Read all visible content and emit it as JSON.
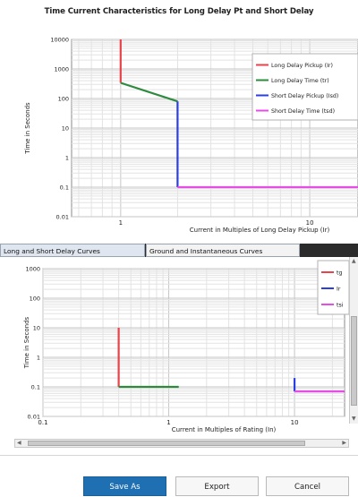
{
  "window": {
    "title": "Time Current Characteristics for Long Delay Pt and Short Delay"
  },
  "tabs": [
    {
      "label": "Long and Short Delay Curves",
      "selected": true
    },
    {
      "label": "Ground and Instantaneous Curves",
      "selected": false
    }
  ],
  "buttons": {
    "save_as": "Save As",
    "export": "Export",
    "cancel": "Cancel"
  },
  "colors": {
    "red": "#e8434a",
    "green": "#2e8b3e",
    "blue": "#2a3fe0",
    "magenta": "#e64ce6",
    "accent": "#1f6fb3"
  },
  "chart_data": [
    {
      "type": "line",
      "scale": {
        "x": "log",
        "y": "log"
      },
      "xlabel": "Current in Multiples of Long Delay Pickup (Ir)",
      "ylabel": "Time in Seconds",
      "xlim": [
        0.55,
        18
      ],
      "ylim": [
        0.01,
        10000
      ],
      "x_ticks": [
        "1",
        "10"
      ],
      "y_ticks": [
        "10000",
        "1000",
        "100",
        "10",
        "1",
        "0.1",
        "0.01"
      ],
      "grid": true,
      "legend_position": "top-right",
      "series": [
        {
          "name": "Long Delay Pickup (Ir)",
          "color": "#e8434a",
          "x": [
            1,
            1
          ],
          "y": [
            10000,
            340
          ]
        },
        {
          "name": "Long Delay Time (tr)",
          "color": "#2e8b3e",
          "x": [
            1,
            2
          ],
          "y": [
            340,
            80
          ]
        },
        {
          "name": "Short Delay Pickup (Isd)",
          "color": "#2a3fe0",
          "x": [
            2,
            2
          ],
          "y": [
            80,
            0.1
          ]
        },
        {
          "name": "Short Delay Time (tsd)",
          "color": "#e64ce6",
          "x": [
            2,
            18
          ],
          "y": [
            0.1,
            0.1
          ]
        }
      ]
    },
    {
      "type": "line",
      "scale": {
        "x": "log",
        "y": "log"
      },
      "xlabel": "Current in Multiples of Rating (In)",
      "ylabel": "Time in Seconds",
      "xlim": [
        0.1,
        25
      ],
      "ylim": [
        0.01,
        1000
      ],
      "x_ticks": [
        "0.1",
        "1",
        "10"
      ],
      "y_ticks": [
        "1000",
        "100",
        "10",
        "1",
        "0.1",
        "0.01"
      ],
      "grid": true,
      "legend_position": "top-right",
      "series": [
        {
          "name": "tg",
          "color": "#e8434a",
          "x": [
            0.4,
            0.4
          ],
          "y": [
            10,
            0.1
          ]
        },
        {
          "name": "tg",
          "color": "#2e8b3e",
          "x": [
            0.4,
            1.2
          ],
          "y": [
            0.1,
            0.1
          ]
        },
        {
          "name": "Ir",
          "color": "#2a3fe0",
          "x": [
            10,
            10
          ],
          "y": [
            0.2,
            0.07
          ]
        },
        {
          "name": "tsi",
          "color": "#e64ce6",
          "x": [
            10,
            25
          ],
          "y": [
            0.07,
            0.07
          ]
        }
      ]
    }
  ]
}
